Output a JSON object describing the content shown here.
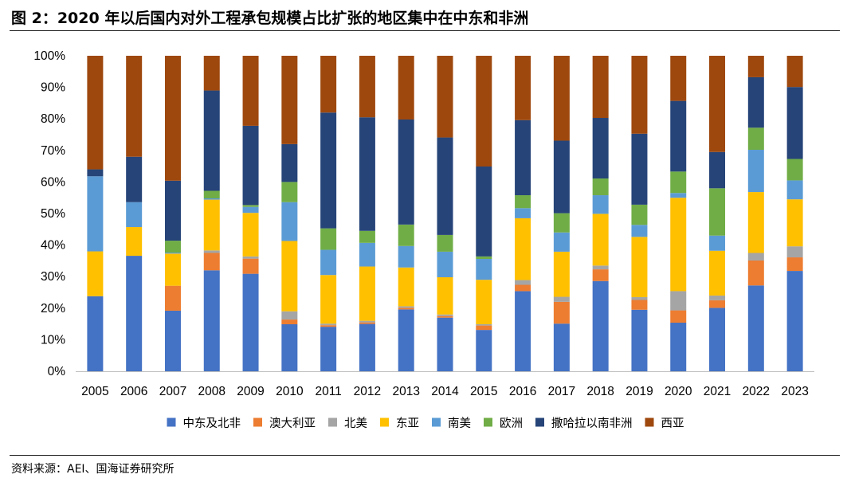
{
  "figure": {
    "title": "图 2：2020 年以后国内对外工程承包规模占比扩张的地区集中在中东和非洲",
    "source": "资料来源：AEI、国海证券研究所"
  },
  "chart_data": {
    "type": "bar",
    "stacked": true,
    "percent": true,
    "categories": [
      "2005",
      "2006",
      "2007",
      "2008",
      "2009",
      "2010",
      "2011",
      "2012",
      "2013",
      "2014",
      "2015",
      "2016",
      "2017",
      "2018",
      "2019",
      "2020",
      "2021",
      "2022",
      "2023"
    ],
    "series": [
      {
        "name": "中东及北非",
        "color": "#4472C4",
        "values": [
          23.8,
          36.6,
          19.2,
          32.0,
          30.9,
          14.9,
          14.1,
          15.0,
          19.6,
          17.0,
          13.1,
          25.4,
          15.1,
          28.6,
          19.5,
          15.4,
          20.1,
          27.2,
          31.8
        ]
      },
      {
        "name": "澳大利亚",
        "color": "#ED7D31",
        "values": [
          0,
          0,
          7.9,
          5.5,
          4.8,
          1.5,
          0.5,
          0.5,
          0.5,
          0.5,
          1.4,
          2.0,
          6.9,
          3.7,
          3.1,
          3.9,
          2.4,
          7.9,
          4.3
        ]
      },
      {
        "name": "北美",
        "color": "#A5A5A5",
        "values": [
          0,
          0,
          0,
          0.8,
          0.7,
          2.6,
          0.5,
          0.5,
          0.5,
          0.5,
          0.4,
          1.5,
          1.6,
          1.2,
          0.9,
          6.1,
          1.5,
          2.4,
          3.5
        ]
      },
      {
        "name": "东亚",
        "color": "#FFC000",
        "values": [
          14.2,
          9.1,
          10.2,
          16.1,
          13.8,
          22.3,
          15.4,
          17.2,
          12.3,
          11.8,
          14.1,
          19.6,
          14.3,
          16.4,
          19.1,
          29.6,
          14.2,
          19.3,
          14.9
        ]
      },
      {
        "name": "南美",
        "color": "#5B9BD5",
        "values": [
          23.8,
          7.9,
          0.3,
          0.4,
          1.9,
          12.3,
          8.0,
          7.5,
          6.8,
          8.1,
          6.6,
          3.2,
          6.1,
          5.9,
          3.8,
          1.5,
          4.8,
          13.4,
          6.0
        ]
      },
      {
        "name": "欧洲",
        "color": "#70AD47",
        "values": [
          0,
          0,
          3.8,
          2.4,
          0.6,
          6.4,
          6.8,
          3.8,
          6.8,
          5.3,
          0.8,
          4.1,
          6.1,
          5.3,
          6.4,
          6.8,
          15.0,
          7.0,
          6.8
        ]
      },
      {
        "name": "撒哈拉以南非洲",
        "color": "#264478",
        "values": [
          2.2,
          14.4,
          19.0,
          31.8,
          25.1,
          12.0,
          36.7,
          36.0,
          33.3,
          30.9,
          28.5,
          23.8,
          23.0,
          19.2,
          22.5,
          22.4,
          11.5,
          16.0,
          22.8
        ]
      },
      {
        "name": "西亚",
        "color": "#9E480E",
        "values": [
          36.0,
          32.0,
          39.6,
          11.0,
          22.2,
          28.0,
          18.0,
          19.5,
          20.2,
          25.9,
          35.1,
          20.4,
          26.9,
          19.7,
          24.7,
          14.3,
          30.5,
          6.8,
          9.9
        ]
      }
    ],
    "y_ticks": [
      "0%",
      "10%",
      "20%",
      "30%",
      "40%",
      "50%",
      "60%",
      "70%",
      "80%",
      "90%",
      "100%"
    ],
    "ylim": [
      0,
      100
    ],
    "grid": false,
    "legend_position": "bottom"
  }
}
